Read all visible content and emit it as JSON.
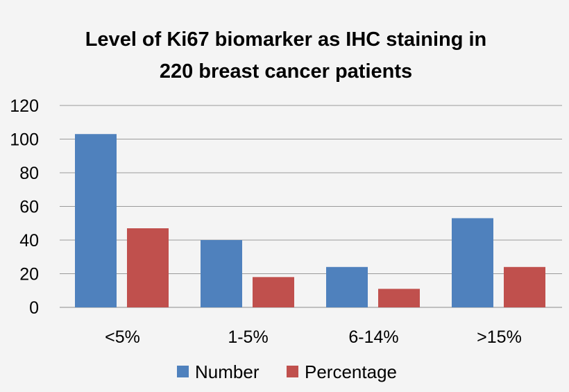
{
  "chart_data": {
    "type": "bar",
    "title_lines": [
      "Level of Ki67 biomarker as IHC staining in",
      "220 breast cancer patients"
    ],
    "categories": [
      "<5%",
      "1-5%",
      "6-14%",
      ">15%"
    ],
    "series": [
      {
        "name": "Number",
        "values": [
          103,
          40,
          24,
          53
        ],
        "color": "#4f81bd"
      },
      {
        "name": "Percentage",
        "values": [
          47,
          18,
          11,
          24
        ],
        "color": "#c0504d"
      }
    ],
    "ylim": [
      0,
      120
    ],
    "yticks": [
      "0",
      "20",
      "40",
      "60",
      "80",
      "100",
      "120"
    ],
    "grid": true,
    "legend_position": "bottom"
  }
}
